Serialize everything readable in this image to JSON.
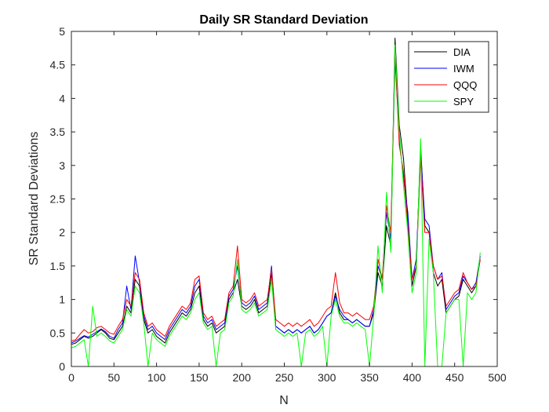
{
  "chart_data": {
    "type": "line",
    "title": "Daily SR Standard Deviation",
    "xlabel": "N",
    "ylabel": "SR Standard Deviations",
    "xlim": [
      0,
      500
    ],
    "ylim": [
      0,
      5
    ],
    "xticks": [
      0,
      50,
      100,
      150,
      200,
      250,
      300,
      350,
      400,
      450,
      500
    ],
    "yticks": [
      0,
      0.5,
      1,
      1.5,
      2,
      2.5,
      3,
      3.5,
      4,
      4.5,
      5
    ],
    "xtick_labels": [
      "0",
      "50",
      "100",
      "150",
      "200",
      "250",
      "300",
      "350",
      "400",
      "450",
      "500"
    ],
    "ytick_labels": [
      "0",
      "0.5",
      "1",
      "1.5",
      "2",
      "2.5",
      "3",
      "3.5",
      "4",
      "4.5",
      "5"
    ],
    "grid": false,
    "legend_position": "top-right",
    "x": [
      0,
      5,
      10,
      15,
      20,
      25,
      30,
      35,
      40,
      45,
      50,
      55,
      60,
      65,
      70,
      75,
      80,
      85,
      90,
      95,
      100,
      105,
      110,
      115,
      120,
      125,
      130,
      135,
      140,
      145,
      150,
      155,
      160,
      165,
      170,
      175,
      180,
      185,
      190,
      195,
      200,
      205,
      210,
      215,
      220,
      225,
      230,
      235,
      240,
      245,
      250,
      255,
      260,
      265,
      270,
      275,
      280,
      285,
      290,
      295,
      300,
      305,
      310,
      315,
      320,
      325,
      330,
      335,
      340,
      345,
      350,
      355,
      360,
      365,
      370,
      375,
      380,
      385,
      390,
      395,
      400,
      405,
      410,
      415,
      420,
      425,
      430,
      435,
      440,
      445,
      450,
      455,
      460,
      465,
      470,
      475,
      480
    ],
    "series": [
      {
        "name": "DIA",
        "color": "#000000",
        "values": [
          0.33,
          0.35,
          0.4,
          0.45,
          0.42,
          0.45,
          0.5,
          0.55,
          0.5,
          0.42,
          0.4,
          0.5,
          0.6,
          0.9,
          0.8,
          1.3,
          1.2,
          0.7,
          0.5,
          0.55,
          0.45,
          0.4,
          0.35,
          0.5,
          0.6,
          0.7,
          0.8,
          0.75,
          0.85,
          1.1,
          1.2,
          0.7,
          0.6,
          0.65,
          0.5,
          0.55,
          0.6,
          1.0,
          1.1,
          1.3,
          0.9,
          0.85,
          0.9,
          1.0,
          0.8,
          0.85,
          0.9,
          1.4,
          0.6,
          0.55,
          0.5,
          0.55,
          0.5,
          0.55,
          0.5,
          0.55,
          0.6,
          0.5,
          0.55,
          0.65,
          0.75,
          0.8,
          1.1,
          0.8,
          0.7,
          0.7,
          0.65,
          0.7,
          0.65,
          0.6,
          0.6,
          0.8,
          1.4,
          1.2,
          2.1,
          1.8,
          4.9,
          3.6,
          3.1,
          2.2,
          1.2,
          1.5,
          3.3,
          2.1,
          2.0,
          1.4,
          1.2,
          1.3,
          0.8,
          0.9,
          1.0,
          1.05,
          1.3,
          1.2,
          1.1,
          1.2,
          1.6
        ]
      },
      {
        "name": "IWM",
        "color": "#0000ff",
        "values": [
          0.35,
          0.38,
          0.42,
          0.46,
          0.44,
          0.48,
          0.52,
          0.56,
          0.52,
          0.45,
          0.42,
          0.55,
          0.65,
          1.2,
          0.85,
          1.65,
          1.25,
          0.75,
          0.55,
          0.6,
          0.5,
          0.45,
          0.4,
          0.55,
          0.65,
          0.75,
          0.85,
          0.8,
          0.9,
          1.2,
          1.3,
          0.75,
          0.65,
          0.7,
          0.55,
          0.6,
          0.65,
          1.05,
          1.15,
          1.5,
          0.95,
          0.9,
          0.95,
          1.05,
          0.85,
          0.9,
          0.95,
          1.5,
          0.6,
          0.55,
          0.5,
          0.55,
          0.5,
          0.55,
          0.5,
          0.55,
          0.6,
          0.5,
          0.55,
          0.65,
          0.75,
          0.8,
          1.05,
          0.85,
          0.75,
          0.7,
          0.65,
          0.7,
          0.65,
          0.6,
          0.6,
          0.85,
          1.5,
          1.3,
          2.3,
          1.9,
          4.6,
          3.4,
          2.8,
          2.3,
          1.3,
          1.6,
          3.2,
          2.2,
          2.1,
          1.5,
          1.3,
          1.4,
          0.85,
          0.95,
          1.05,
          1.1,
          1.35,
          1.25,
          1.15,
          1.25,
          1.65
        ]
      },
      {
        "name": "QQQ",
        "color": "#ff0000",
        "values": [
          0.38,
          0.4,
          0.48,
          0.55,
          0.5,
          0.52,
          0.58,
          0.6,
          0.55,
          0.5,
          0.48,
          0.6,
          0.7,
          1.0,
          0.9,
          1.4,
          1.3,
          0.8,
          0.6,
          0.65,
          0.55,
          0.5,
          0.45,
          0.6,
          0.7,
          0.8,
          0.9,
          0.85,
          0.95,
          1.3,
          1.35,
          0.8,
          0.7,
          0.75,
          0.6,
          0.65,
          0.7,
          1.1,
          1.2,
          1.8,
          1.0,
          0.95,
          1.0,
          1.1,
          0.9,
          0.95,
          1.0,
          1.45,
          0.7,
          0.65,
          0.6,
          0.65,
          0.6,
          0.65,
          0.6,
          0.65,
          0.7,
          0.6,
          0.65,
          0.75,
          0.85,
          0.9,
          1.4,
          0.95,
          0.8,
          0.8,
          0.75,
          0.8,
          0.75,
          0.7,
          0.7,
          0.9,
          1.6,
          1.3,
          2.4,
          2.0,
          4.7,
          3.3,
          2.9,
          2.1,
          1.3,
          1.5,
          3.1,
          2.0,
          2.0,
          1.5,
          1.3,
          1.35,
          0.9,
          1.0,
          1.1,
          1.15,
          1.4,
          1.25,
          1.15,
          1.2,
          1.6
        ]
      },
      {
        "name": "SPY",
        "color": "#00ff00",
        "values": [
          0.28,
          0.3,
          0.35,
          0.4,
          0.0,
          0.9,
          0.45,
          0.5,
          0.45,
          0.38,
          0.35,
          0.45,
          0.55,
          0.85,
          0.75,
          1.2,
          1.1,
          0.65,
          0.0,
          0.5,
          0.4,
          0.35,
          0.3,
          0.45,
          0.55,
          0.65,
          0.75,
          0.7,
          0.8,
          1.0,
          1.1,
          0.65,
          0.55,
          0.6,
          0.0,
          0.5,
          0.55,
          0.95,
          1.05,
          1.6,
          0.85,
          0.8,
          0.85,
          0.95,
          0.75,
          0.8,
          0.85,
          1.3,
          0.55,
          0.5,
          0.45,
          0.5,
          0.45,
          0.5,
          0.0,
          0.5,
          0.55,
          0.45,
          0.5,
          0.6,
          0.0,
          0.75,
          1.0,
          0.75,
          0.65,
          0.65,
          0.6,
          0.65,
          0.6,
          0.55,
          0.0,
          0.75,
          1.8,
          1.1,
          2.6,
          1.7,
          4.8,
          3.5,
          2.7,
          2.0,
          1.1,
          1.4,
          3.4,
          0.0,
          1.9,
          1.4,
          0.0,
          0.0,
          0.8,
          0.9,
          1.0,
          1.0,
          0.0,
          1.1,
          1.0,
          1.1,
          1.7
        ]
      }
    ]
  }
}
